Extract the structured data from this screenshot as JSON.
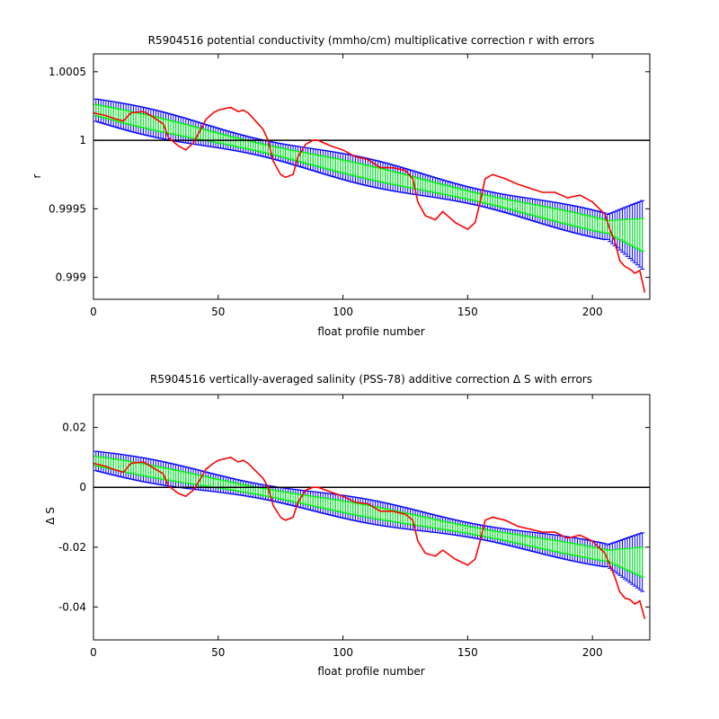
{
  "chart_data": [
    {
      "type": "line",
      "title": "R5904516 potential conductivity (mmho/cm) multiplicative correction r with errors",
      "xlabel": "float profile number",
      "ylabel": "r",
      "xlim": [
        0,
        223
      ],
      "ylim": [
        0.99884,
        1.00063
      ],
      "xticks": [
        "0",
        "50",
        "100",
        "150",
        "200"
      ],
      "yticks": [
        "0.999",
        "0.9995",
        "1",
        "1.0005"
      ],
      "grid": false,
      "reference_line": 1,
      "series": [
        {
          "kind": "trend-with-errorbars",
          "color": "#0000ff",
          "x": [
            1,
            220
          ],
          "mean": [
            1.00022,
            0.99931
          ],
          "half_error": [
            8e-05,
            0.00025
          ],
          "error_growth_start": 205
        },
        {
          "kind": "trend-with-errorbars",
          "color": "#00ff00",
          "x": [
            1,
            220
          ],
          "mean": [
            1.00022,
            0.99931
          ],
          "half_error": [
            4e-05,
            0.00012
          ],
          "error_growth_start": 205
        },
        {
          "kind": "line",
          "color": "#ff0000",
          "x": [
            0,
            5,
            8,
            12,
            15,
            20,
            23,
            28,
            30,
            34,
            37,
            40,
            43,
            45,
            48,
            50,
            55,
            58,
            60,
            62,
            65,
            68,
            70,
            72,
            75,
            77,
            80,
            82,
            85,
            88,
            90,
            95,
            100,
            105,
            110,
            115,
            120,
            125,
            128,
            130,
            133,
            137,
            140,
            145,
            150,
            153,
            155,
            157,
            160,
            165,
            170,
            175,
            180,
            185,
            190,
            195,
            200,
            205,
            207,
            209,
            211,
            213,
            215,
            217,
            219,
            221
          ],
          "y": [
            1.0002,
            1.00018,
            1.00016,
            1.00014,
            1.0002,
            1.00021,
            1.00018,
            1.00012,
            1.00002,
            0.99996,
            0.99993,
            0.99998,
            1.00008,
            1.00015,
            1.0002,
            1.00022,
            1.00024,
            1.00021,
            1.00022,
            1.0002,
            1.00014,
            1.00008,
            1.0,
            0.99985,
            0.99975,
            0.99973,
            0.99975,
            0.99988,
            0.99997,
            1.0,
            1.0,
            0.99996,
            0.99993,
            0.99988,
            0.99986,
            0.9998,
            0.9998,
            0.99978,
            0.99972,
            0.99955,
            0.99945,
            0.99942,
            0.99948,
            0.9994,
            0.99935,
            0.9994,
            0.99955,
            0.99972,
            0.99975,
            0.99972,
            0.99968,
            0.99965,
            0.99962,
            0.99962,
            0.99958,
            0.9996,
            0.99955,
            0.99946,
            0.99935,
            0.99926,
            0.99912,
            0.99908,
            0.99906,
            0.99903,
            0.99905,
            0.99889
          ]
        }
      ]
    },
    {
      "type": "line",
      "title": "R5904516 vertically-averaged salinity (PSS-78) additive correction Δ S with errors",
      "xlabel": "float profile number",
      "ylabel": "Δ S",
      "xlim": [
        0,
        223
      ],
      "ylim": [
        -0.051,
        0.031
      ],
      "xticks": [
        "0",
        "50",
        "100",
        "150",
        "200"
      ],
      "yticks": [
        "-0.04",
        "-0.02",
        "0",
        "0.02"
      ],
      "grid": false,
      "reference_line": 0,
      "series": [
        {
          "kind": "trend-with-errorbars",
          "color": "#0000ff",
          "x": [
            1,
            220
          ],
          "mean": [
            0.0088,
            -0.025
          ],
          "half_error": [
            0.0032,
            0.0098
          ],
          "error_growth_start": 205
        },
        {
          "kind": "trend-with-errorbars",
          "color": "#00ff00",
          "x": [
            1,
            220
          ],
          "mean": [
            0.0088,
            -0.025
          ],
          "half_error": [
            0.0016,
            0.005
          ],
          "error_growth_start": 205
        },
        {
          "kind": "line",
          "color": "#ff0000",
          "x": [
            0,
            5,
            8,
            12,
            15,
            20,
            23,
            28,
            30,
            34,
            37,
            40,
            43,
            45,
            48,
            50,
            55,
            58,
            60,
            62,
            65,
            68,
            70,
            72,
            75,
            77,
            80,
            82,
            85,
            88,
            90,
            95,
            100,
            105,
            110,
            115,
            120,
            125,
            128,
            130,
            133,
            137,
            140,
            145,
            150,
            153,
            155,
            157,
            160,
            165,
            170,
            175,
            180,
            185,
            190,
            195,
            200,
            205,
            207,
            209,
            211,
            213,
            215,
            217,
            219,
            221
          ],
          "y": [
            0.008,
            0.007,
            0.006,
            0.005,
            0.008,
            0.0085,
            0.007,
            0.0045,
            0.0005,
            -0.002,
            -0.003,
            -0.001,
            0.003,
            0.006,
            0.008,
            0.009,
            0.01,
            0.0085,
            0.009,
            0.008,
            0.0055,
            0.003,
            0.0,
            -0.006,
            -0.01,
            -0.011,
            -0.01,
            -0.005,
            -0.001,
            0.0,
            0.0,
            -0.0015,
            -0.003,
            -0.005,
            -0.0055,
            -0.008,
            -0.008,
            -0.009,
            -0.011,
            -0.018,
            -0.022,
            -0.023,
            -0.021,
            -0.024,
            -0.026,
            -0.024,
            -0.018,
            -0.011,
            -0.01,
            -0.011,
            -0.013,
            -0.014,
            -0.015,
            -0.015,
            -0.017,
            -0.016,
            -0.018,
            -0.022,
            -0.026,
            -0.03,
            -0.035,
            -0.037,
            -0.0375,
            -0.039,
            -0.038,
            -0.044
          ]
        }
      ]
    }
  ]
}
